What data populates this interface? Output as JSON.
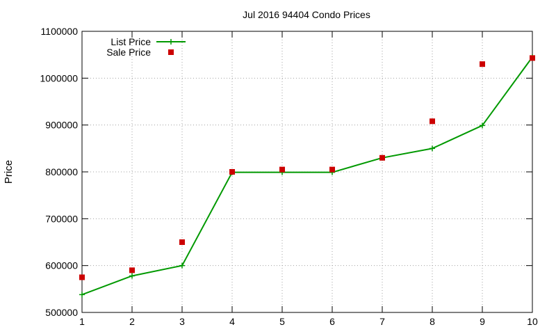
{
  "chart_data": {
    "type": "line",
    "title": "Jul 2016 94404 Condo Prices",
    "xlabel": "",
    "ylabel": "Price",
    "x": [
      1,
      2,
      3,
      4,
      5,
      6,
      7,
      8,
      9,
      10
    ],
    "xlim": [
      1,
      10
    ],
    "ylim": [
      500000,
      1100000
    ],
    "xticks": [
      1,
      2,
      3,
      4,
      5,
      6,
      7,
      8,
      9,
      10
    ],
    "yticks": [
      500000,
      600000,
      700000,
      800000,
      900000,
      1000000,
      1100000
    ],
    "grid": true,
    "legend_position": "top-left",
    "series": [
      {
        "name": "List Price",
        "style": "line-points",
        "marker": "plus",
        "color": "#009900",
        "values": [
          538000,
          578000,
          600000,
          799000,
          799000,
          799000,
          830000,
          850000,
          899000,
          1045000
        ]
      },
      {
        "name": "Sale Price",
        "style": "points",
        "marker": "square",
        "color": "#cc0000",
        "values": [
          575000,
          590000,
          650000,
          800000,
          805000,
          805000,
          830000,
          908000,
          1030000,
          1043000
        ]
      }
    ]
  }
}
